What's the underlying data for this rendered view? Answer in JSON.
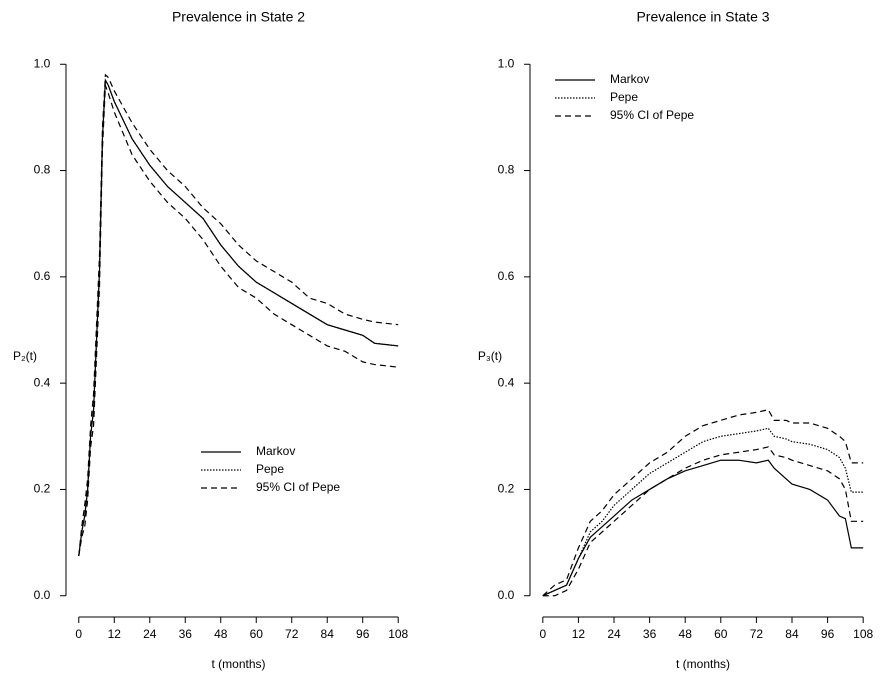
{
  "chart_data": [
    {
      "type": "line",
      "title": "Prevalence in State 2",
      "x_label": "t (months)",
      "y_label": "P₂(t)",
      "x": [
        0,
        1,
        2,
        3,
        4,
        5,
        6,
        7,
        8,
        9,
        10,
        12,
        18,
        24,
        30,
        36,
        42,
        48,
        54,
        60,
        66,
        72,
        78,
        84,
        90,
        96,
        100,
        108
      ],
      "series": [
        {
          "name": "Markov",
          "color": "#000000",
          "dash": "solid",
          "values": [
            0.075,
            0.12,
            0.15,
            0.2,
            0.3,
            0.35,
            0.48,
            0.61,
            0.86,
            0.97,
            0.96,
            0.93,
            0.86,
            0.81,
            0.77,
            0.74,
            0.71,
            0.66,
            0.62,
            0.59,
            0.57,
            0.55,
            0.53,
            0.51,
            0.5,
            0.49,
            0.475,
            0.47
          ]
        },
        {
          "name": "Pepe",
          "color": "#000000",
          "dash": "dotted",
          "values": [
            0.075,
            0.12,
            0.15,
            0.2,
            0.3,
            0.35,
            0.48,
            0.61,
            0.86,
            0.97,
            0.96,
            0.93,
            0.86,
            0.81,
            0.77,
            0.74,
            0.71,
            0.66,
            0.62,
            0.59,
            0.57,
            0.55,
            0.53,
            0.51,
            0.5,
            0.49,
            0.475,
            0.47
          ]
        },
        {
          "name": "95% CI of Pepe",
          "color": "#000000",
          "dash": "dashed",
          "values": [
            0.075,
            0.13,
            0.17,
            0.22,
            0.32,
            0.38,
            0.51,
            0.64,
            0.88,
            0.98,
            0.975,
            0.95,
            0.89,
            0.84,
            0.8,
            0.77,
            0.73,
            0.7,
            0.66,
            0.63,
            0.61,
            0.59,
            0.56,
            0.55,
            0.53,
            0.52,
            0.515,
            0.51
          ]
        },
        {
          "name": null,
          "color": "#000000",
          "dash": "dashed",
          "values": [
            0.075,
            0.11,
            0.13,
            0.18,
            0.28,
            0.32,
            0.45,
            0.58,
            0.84,
            0.96,
            0.945,
            0.91,
            0.83,
            0.78,
            0.74,
            0.71,
            0.67,
            0.62,
            0.58,
            0.56,
            0.53,
            0.51,
            0.49,
            0.47,
            0.46,
            0.44,
            0.435,
            0.43
          ]
        }
      ],
      "xlim": [
        -4.32,
        112.32
      ],
      "ylim": [
        -0.04,
        1.04
      ],
      "xticks": [
        0,
        12,
        24,
        36,
        48,
        60,
        72,
        84,
        96,
        108
      ],
      "yticks": [
        {
          "value": 0,
          "label": "0.0"
        },
        0.2,
        0.4,
        0.6,
        0.8,
        {
          "value": 1,
          "label": "1.0"
        }
      ],
      "legend": "lower-center"
    },
    {
      "type": "line",
      "title": "Prevalence in State 3",
      "x_label": "t (months)",
      "y_label": "P₃(t)",
      "x": [
        0,
        4,
        8,
        12,
        16,
        20,
        24,
        30,
        36,
        42,
        48,
        54,
        60,
        66,
        72,
        76,
        78,
        82,
        84,
        90,
        96,
        100,
        102,
        104,
        108
      ],
      "series": [
        {
          "name": "Markov",
          "color": "#000000",
          "dash": "solid",
          "values": [
            0,
            0.01,
            0.02,
            0.07,
            0.11,
            0.13,
            0.15,
            0.18,
            0.2,
            0.22,
            0.235,
            0.245,
            0.255,
            0.255,
            0.25,
            0.255,
            0.24,
            0.22,
            0.21,
            0.2,
            0.18,
            0.15,
            0.145,
            0.09,
            0.09
          ]
        },
        {
          "name": "Pepe",
          "color": "#000000",
          "dash": "dotted",
          "values": [
            0,
            0.01,
            0.02,
            0.07,
            0.12,
            0.14,
            0.17,
            0.2,
            0.23,
            0.25,
            0.27,
            0.29,
            0.3,
            0.305,
            0.31,
            0.315,
            0.3,
            0.295,
            0.29,
            0.285,
            0.275,
            0.26,
            0.24,
            0.195,
            0.195
          ]
        },
        {
          "name": "95% CI of Pepe",
          "color": "#000000",
          "dash": "dashed",
          "values": [
            0,
            0.02,
            0.03,
            0.09,
            0.14,
            0.16,
            0.19,
            0.22,
            0.25,
            0.27,
            0.3,
            0.32,
            0.33,
            0.34,
            0.345,
            0.35,
            0.33,
            0.33,
            0.325,
            0.325,
            0.315,
            0.3,
            0.29,
            0.25,
            0.25
          ]
        },
        {
          "name": null,
          "color": "#000000",
          "dash": "dashed",
          "values": [
            0,
            0,
            0.01,
            0.05,
            0.1,
            0.12,
            0.14,
            0.17,
            0.2,
            0.22,
            0.24,
            0.255,
            0.265,
            0.27,
            0.275,
            0.28,
            0.265,
            0.26,
            0.255,
            0.245,
            0.235,
            0.22,
            0.2,
            0.14,
            0.14
          ]
        }
      ],
      "xlim": [
        -4.32,
        112.32
      ],
      "ylim": [
        -0.04,
        1.04
      ],
      "xticks": [
        0,
        12,
        24,
        36,
        48,
        60,
        72,
        84,
        96,
        108
      ],
      "yticks": [
        {
          "value": 0,
          "label": "0.0"
        },
        0.2,
        0.4,
        0.6,
        0.8,
        {
          "value": 1,
          "label": "1.0"
        }
      ],
      "legend": "upper-left"
    }
  ]
}
